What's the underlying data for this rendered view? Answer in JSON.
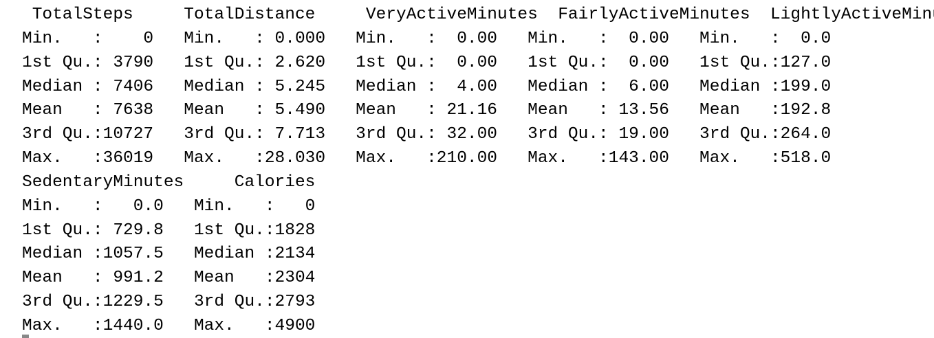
{
  "summary_output": {
    "block1_header": " TotalSteps     TotalDistance     VeryActiveMinutes  FairlyActiveMinutes  LightlyActiveMinutes",
    "block1_rows": [
      "Min.   :    0   Min.   : 0.000   Min.   :  0.00   Min.   :  0.00   Min.   :  0.0",
      "1st Qu.: 3790   1st Qu.: 2.620   1st Qu.:  0.00   1st Qu.:  0.00   1st Qu.:127.0",
      "Median : 7406   Median : 5.245   Median :  4.00   Median :  6.00   Median :199.0",
      "Mean   : 7638   Mean   : 5.490   Mean   : 21.16   Mean   : 13.56   Mean   :192.8",
      "3rd Qu.:10727   3rd Qu.: 7.713   3rd Qu.: 32.00   3rd Qu.: 19.00   3rd Qu.:264.0",
      "Max.   :36019   Max.   :28.030   Max.   :210.00   Max.   :143.00   Max.   :518.0"
    ],
    "block2_header": "SedentaryMinutes     Calories",
    "block2_rows": [
      "Min.   :   0.0   Min.   :   0",
      "1st Qu.: 729.8   1st Qu.:1828",
      "Median :1057.5   Median :2134",
      "Mean   : 991.2   Mean   :2304",
      "3rd Qu.:1229.5   3rd Qu.:2793",
      "Max.   :1440.0   Max.   :4900"
    ]
  }
}
